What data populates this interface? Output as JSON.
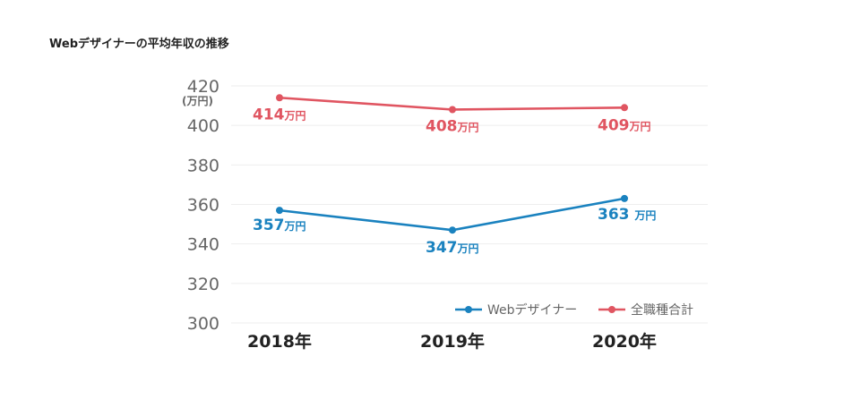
{
  "page": {
    "title": "Webデザイナーの平均年収の推移"
  },
  "chart_data": {
    "type": "line",
    "categories": [
      "2018年",
      "2019年",
      "2020年"
    ],
    "ylim": [
      300,
      420
    ],
    "yticks": [
      420,
      400,
      380,
      360,
      340,
      320,
      300
    ],
    "y_unit": "(万円)",
    "value_unit": "万円",
    "grid": true,
    "legend_position": "bottom-right",
    "series": [
      {
        "name": "Webデザイナー",
        "color": "#1a82bf",
        "values": [
          357,
          347,
          363
        ],
        "labels": [
          "357",
          "347",
          "363 "
        ]
      },
      {
        "name": "全職種合計",
        "color": "#e05561",
        "values": [
          414,
          408,
          409
        ],
        "labels": [
          "414",
          "408",
          "409"
        ]
      }
    ]
  }
}
